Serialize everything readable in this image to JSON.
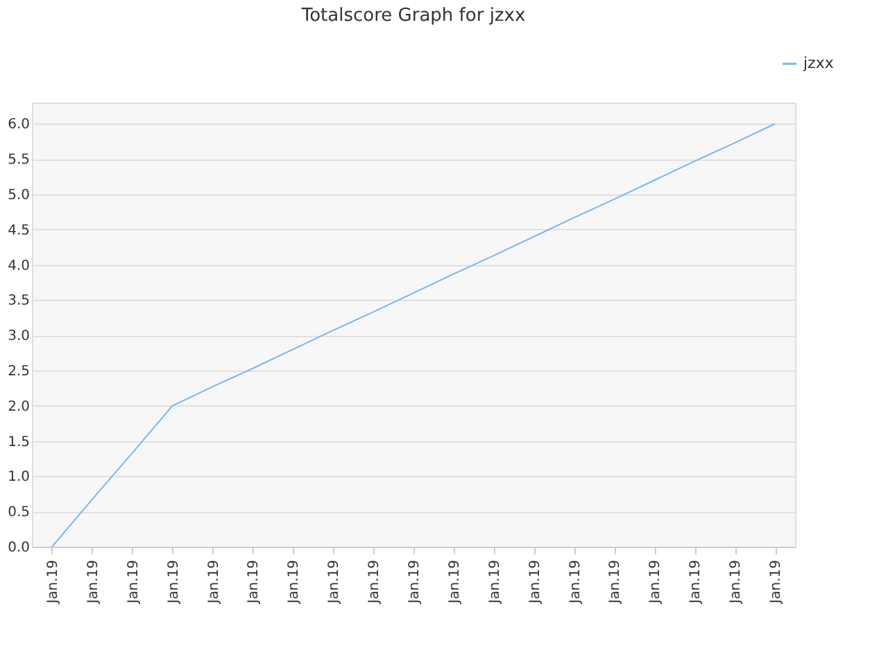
{
  "chart_data": {
    "type": "line",
    "title": "Totalscore Graph for jzxx",
    "categories": [
      "Jan.19",
      "Jan.19",
      "Jan.19",
      "Jan.19",
      "Jan.19",
      "Jan.19",
      "Jan.19",
      "Jan.19",
      "Jan.19",
      "Jan.19",
      "Jan.19",
      "Jan.19",
      "Jan.19",
      "Jan.19",
      "Jan.19",
      "Jan.19",
      "Jan.19",
      "Jan.19",
      "Jan.19"
    ],
    "series": [
      {
        "name": "jzxx",
        "color": "#7cb5ec",
        "values": [
          0,
          0.67,
          1.33,
          2,
          2.27,
          2.53,
          2.8,
          3.07,
          3.33,
          3.6,
          3.87,
          4.13,
          4.4,
          4.67,
          4.93,
          5.2,
          5.47,
          5.73,
          6
        ]
      }
    ],
    "ylim": [
      0,
      6.3
    ],
    "yticks": [
      {
        "value": 0,
        "label": "0.0"
      },
      {
        "value": 0.5,
        "label": "0.5"
      },
      {
        "value": 1,
        "label": "1.0"
      },
      {
        "value": 1.5,
        "label": "1.5"
      },
      {
        "value": 2,
        "label": "2.0"
      },
      {
        "value": 2.5,
        "label": "2.5"
      },
      {
        "value": 3,
        "label": "3.0"
      },
      {
        "value": 3.5,
        "label": "3.5"
      },
      {
        "value": 4,
        "label": "4.0"
      },
      {
        "value": 4.5,
        "label": "4.5"
      },
      {
        "value": 5,
        "label": "5.0"
      },
      {
        "value": 5.5,
        "label": "5.5"
      },
      {
        "value": 6,
        "label": "6.0"
      }
    ],
    "grid": "y",
    "legend": "top right",
    "marker": "none",
    "line_style": "solid"
  }
}
